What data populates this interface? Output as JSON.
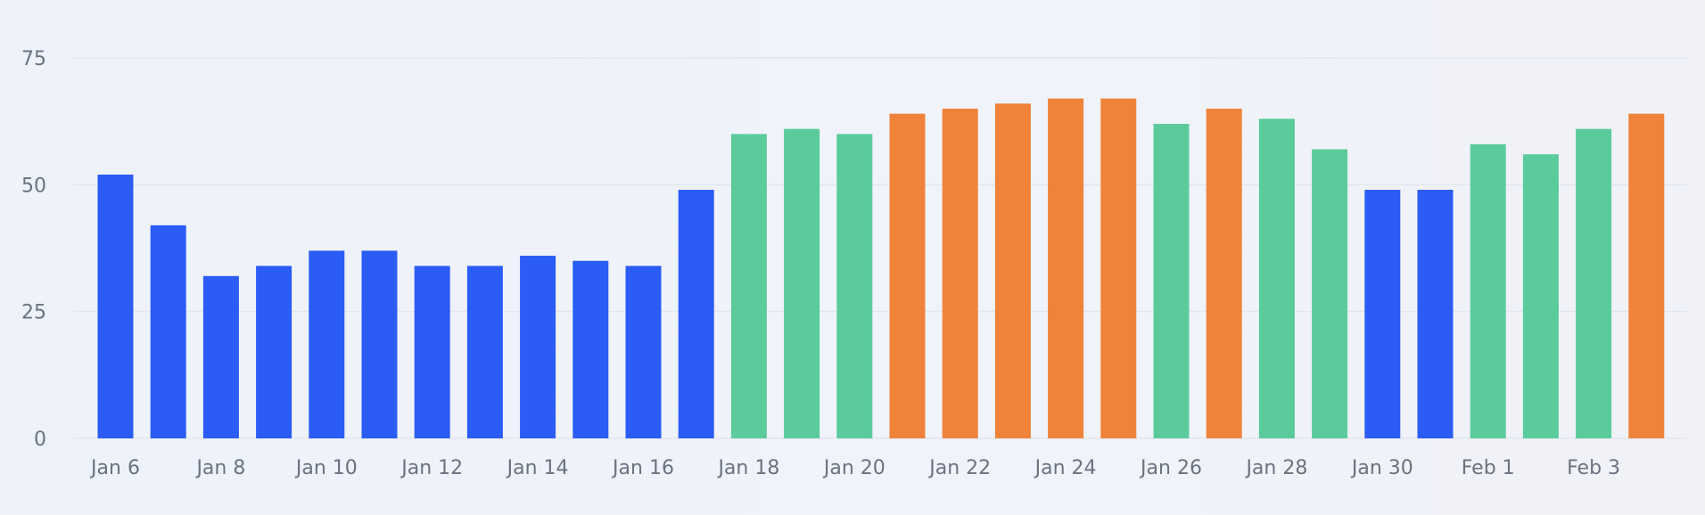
{
  "chart_data": {
    "type": "bar",
    "title": "",
    "xlabel": "",
    "ylabel": "",
    "ylim": [
      0,
      75
    ],
    "grid": true,
    "legend": "none",
    "y_ticks": [
      "0",
      "25",
      "50",
      "75"
    ],
    "y_tick_values": [
      0,
      25,
      50,
      75
    ],
    "categories": [
      "Jan 6",
      "Jan 7",
      "Jan 8",
      "Jan 9",
      "Jan 10",
      "Jan 11",
      "Jan 12",
      "Jan 13",
      "Jan 14",
      "Jan 15",
      "Jan 16",
      "Jan 17",
      "Jan 18",
      "Jan 19",
      "Jan 20",
      "Jan 21",
      "Jan 22",
      "Jan 23",
      "Jan 24",
      "Jan 25",
      "Jan 26",
      "Jan 27",
      "Jan 28",
      "Jan 29",
      "Jan 30",
      "Jan 31",
      "Feb 1",
      "Feb 2",
      "Feb 3",
      "Feb 4"
    ],
    "x_tick_labels": [
      "Jan 6",
      "",
      "Jan 8",
      "",
      "Jan 10",
      "",
      "Jan 12",
      "",
      "Jan 14",
      "",
      "Jan 16",
      "",
      "Jan 18",
      "",
      "Jan 20",
      "",
      "Jan 22",
      "",
      "Jan 24",
      "",
      "Jan 26",
      "",
      "Jan 28",
      "",
      "Jan 30",
      "",
      "Feb 1",
      "",
      "Feb 3",
      ""
    ],
    "values": [
      52,
      42,
      32,
      34,
      37,
      37,
      34,
      34,
      36,
      35,
      34,
      49,
      60,
      61,
      60,
      64,
      65,
      66,
      67,
      67,
      62,
      65,
      63,
      57,
      49,
      49,
      58,
      56,
      61,
      64
    ],
    "bar_colors": [
      "#2b5cf5",
      "#2b5cf5",
      "#2b5cf5",
      "#2b5cf5",
      "#2b5cf5",
      "#2b5cf5",
      "#2b5cf5",
      "#2b5cf5",
      "#2b5cf5",
      "#2b5cf5",
      "#2b5cf5",
      "#2b5cf5",
      "#5ccb9c",
      "#5ccb9c",
      "#5ccb9c",
      "#ef833a",
      "#ef833a",
      "#ef833a",
      "#ef833a",
      "#ef833a",
      "#5ccb9c",
      "#ef833a",
      "#5ccb9c",
      "#5ccb9c",
      "#2b5cf5",
      "#2b5cf5",
      "#5ccb9c",
      "#5ccb9c",
      "#5ccb9c",
      "#ef833a"
    ],
    "colors": {
      "blue": "#2b5cf5",
      "green": "#5ccb9c",
      "orange": "#ef833a",
      "grid": "#e3e6ee",
      "tick_text": "#6b7280"
    }
  }
}
